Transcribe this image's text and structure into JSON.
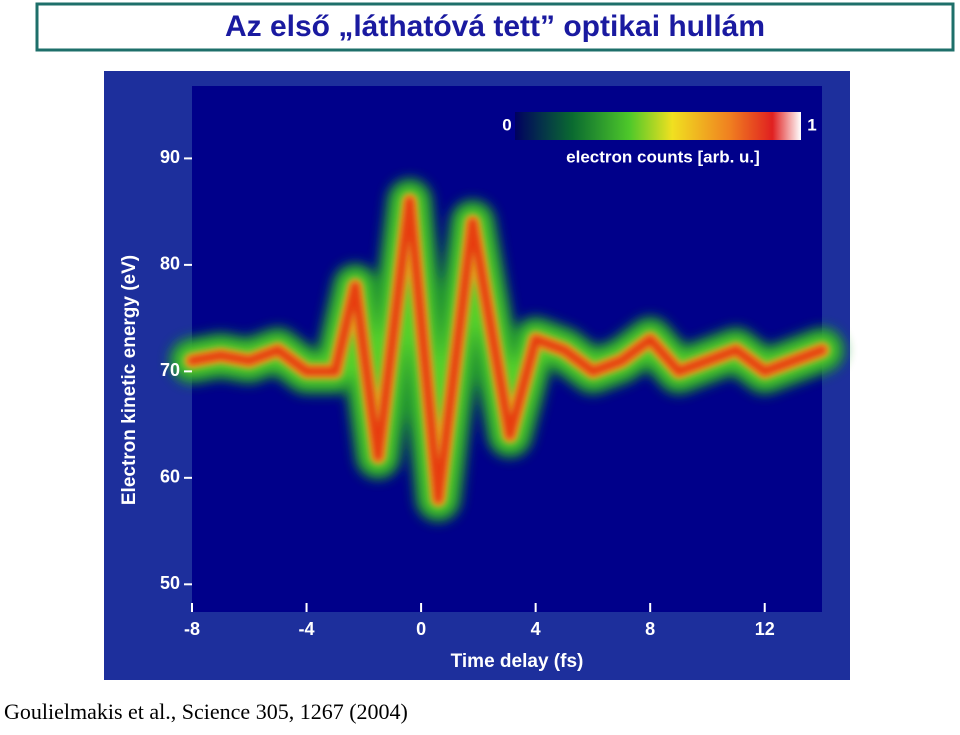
{
  "slide": {
    "title": "Az első „láthatóvá tett” optikai hullám",
    "citation": "Goulielmakis et al., Science 305, 1267 (2004)"
  },
  "chart_data": {
    "type": "line",
    "xlabel": "Time delay (fs)",
    "ylabel": "Electron kinetic energy (eV)",
    "x": [
      -8,
      -7,
      -6,
      -5,
      -4,
      -3,
      -2.3,
      -1.5,
      -0.4,
      0.6,
      1.8,
      3.1,
      4,
      5,
      6,
      7,
      8,
      9,
      10,
      11,
      12,
      13,
      14
    ],
    "series": [
      {
        "color": "#e83010",
        "values": [
          71,
          71.5,
          71,
          72,
          70,
          70,
          78,
          62,
          86,
          58,
          84,
          64,
          73,
          72,
          70,
          71,
          73,
          70,
          71,
          72,
          70,
          71,
          72
        ]
      }
    ],
    "xlim": [
      -8,
      14
    ],
    "xticks": [
      -8,
      -4,
      0,
      4,
      8,
      12
    ],
    "ylim": [
      47.4,
      96.8
    ],
    "yticks": [
      50,
      60,
      70,
      80,
      90
    ],
    "colorbar": {
      "min_label": "0",
      "max_label": "1",
      "label": "electron counts [arb. u.]"
    }
  }
}
